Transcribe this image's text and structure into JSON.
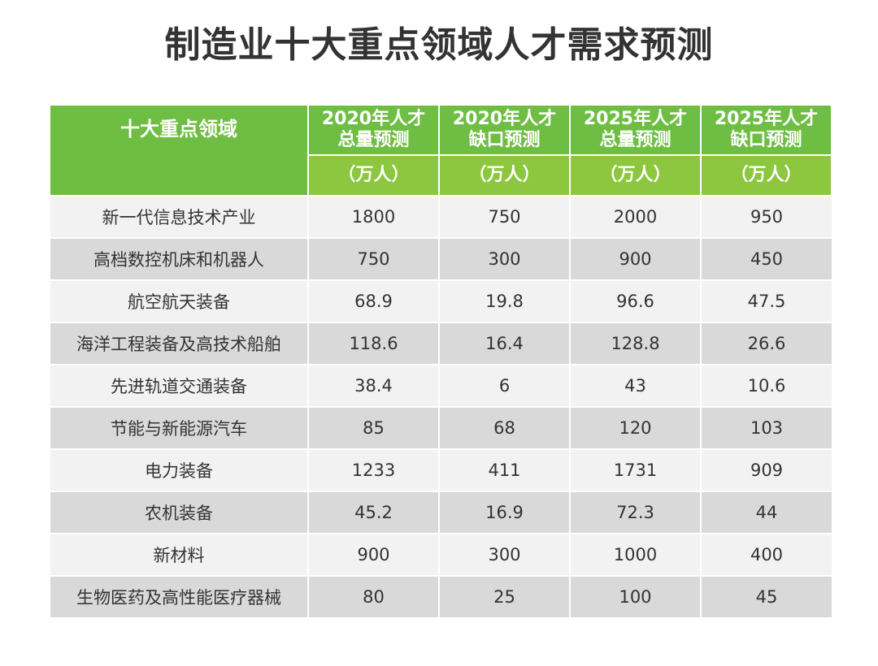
{
  "title": "制造业十大重点领域人才需求预测",
  "table": {
    "header": {
      "domain_label": "十大重点领域",
      "columns": [
        {
          "line1": "2020年人才",
          "line2": "总量预测"
        },
        {
          "line1": "2020年人才",
          "line2": "缺口预测"
        },
        {
          "line1": "2025年人才",
          "line2": "总量预测"
        },
        {
          "line1": "2025年人才",
          "line2": "缺口预测"
        }
      ],
      "units": [
        "（万人）",
        "（万人）",
        "（万人）",
        "（万人）"
      ]
    },
    "rows": [
      {
        "domain": "新一代信息技术产业",
        "values": [
          "1800",
          "750",
          "2000",
          "950"
        ]
      },
      {
        "domain": "高档数控机床和机器人",
        "values": [
          "750",
          "300",
          "900",
          "450"
        ]
      },
      {
        "domain": "航空航天装备",
        "values": [
          "68.9",
          "19.8",
          "96.6",
          "47.5"
        ]
      },
      {
        "domain": "海洋工程装备及高技术船舶",
        "values": [
          "118.6",
          "16.4",
          "128.8",
          "26.6"
        ]
      },
      {
        "domain": "先进轨道交通装备",
        "values": [
          "38.4",
          "6",
          "43",
          "10.6"
        ]
      },
      {
        "domain": "节能与新能源汽车",
        "values": [
          "85",
          "68",
          "120",
          "103"
        ]
      },
      {
        "domain": "电力装备",
        "values": [
          "1233",
          "411",
          "1731",
          "909"
        ]
      },
      {
        "domain": "农机装备",
        "values": [
          "45.2",
          "16.9",
          "72.3",
          "44"
        ]
      },
      {
        "domain": "新材料",
        "values": [
          "900",
          "300",
          "1000",
          "400"
        ]
      },
      {
        "domain": "生物医药及高性能医疗器械",
        "values": [
          "80",
          "25",
          "100",
          "45"
        ]
      }
    ]
  },
  "colors": {
    "header_dark_green": "#6fbe44",
    "header_light_green": "#8dc63f",
    "row_light": "#f2f2f2",
    "row_dark": "#d9d9d9",
    "title_text": "#333333"
  }
}
